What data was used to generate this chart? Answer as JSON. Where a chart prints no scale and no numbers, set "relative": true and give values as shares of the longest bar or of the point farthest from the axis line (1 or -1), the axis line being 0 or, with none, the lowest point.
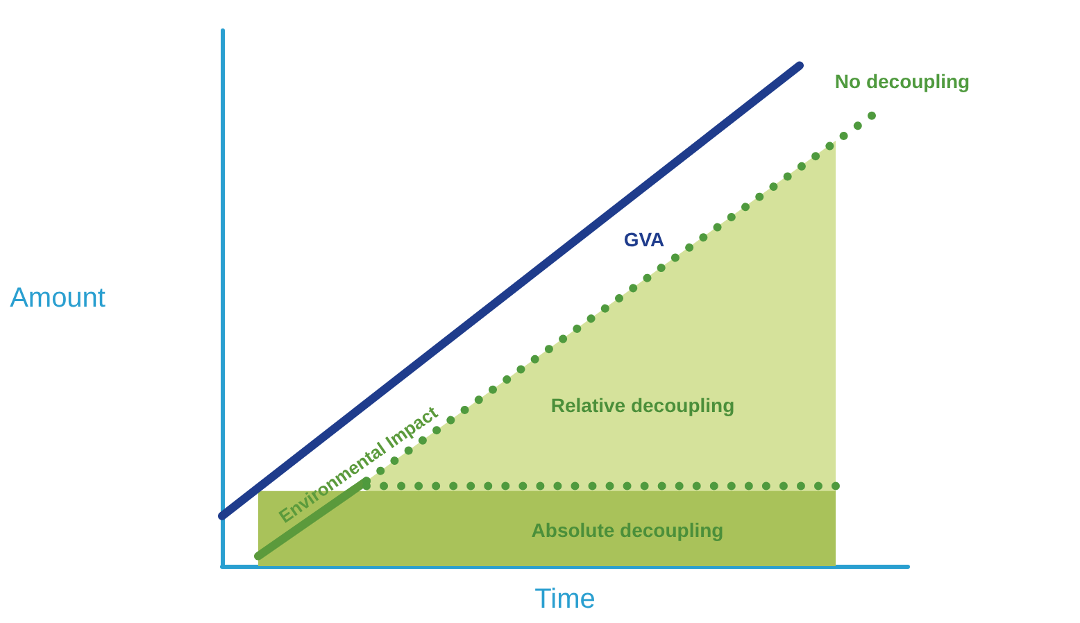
{
  "chart_data": {
    "type": "line",
    "relative": true,
    "xlabel": "Time",
    "ylabel": "Amount",
    "grid": false,
    "legend": false,
    "marker": "none",
    "categories": [
      null,
      null,
      null,
      null,
      null,
      null,
      null,
      null,
      null,
      null,
      null,
      null,
      null,
      null,
      null,
      null,
      null,
      null,
      null,
      null
    ],
    "series": [
      {
        "name": "Relative decoupling",
        "type": "area",
        "color": "#d5e29b",
        "values": [
          null,
          null,
          null,
          null,
          0.17,
          null,
          null,
          null,
          null,
          null,
          null,
          null,
          null,
          null,
          null,
          null,
          null,
          0.85,
          null,
          null
        ]
      },
      {
        "name": "Absolute decoupling",
        "type": "area",
        "color": "#a9c25a",
        "values": [
          null,
          0.15,
          null,
          null,
          null,
          null,
          null,
          null,
          null,
          null,
          null,
          null,
          null,
          null,
          null,
          null,
          null,
          0.15,
          null,
          null
        ]
      },
      {
        "name": "Environmental Impact",
        "line_style": "solid",
        "color": "#5b9a3c",
        "values": [
          null,
          0.02,
          null,
          null,
          0.17,
          null,
          null,
          null,
          null,
          null,
          null,
          null,
          null,
          null,
          null,
          null,
          null,
          null,
          null,
          null
        ]
      },
      {
        "name": "No decoupling",
        "line_style": "dotted",
        "color": "#4f9a3e",
        "values": [
          null,
          null,
          null,
          null,
          0.17,
          null,
          null,
          null,
          null,
          null,
          null,
          null,
          null,
          null,
          null,
          null,
          null,
          null,
          0.9,
          null
        ]
      },
      {
        "line_style": "dotted",
        "color": "#4f9a3e",
        "values": [
          null,
          null,
          null,
          null,
          0.16,
          null,
          null,
          null,
          null,
          null,
          null,
          null,
          null,
          null,
          null,
          null,
          null,
          0.16,
          null,
          null
        ]
      },
      {
        "name": "GVA",
        "line_style": "solid",
        "color": "#1f3c8c",
        "values": [
          0.1,
          null,
          null,
          null,
          null,
          null,
          null,
          null,
          null,
          null,
          null,
          null,
          null,
          null,
          null,
          null,
          1,
          null,
          null,
          null
        ]
      }
    ]
  }
}
